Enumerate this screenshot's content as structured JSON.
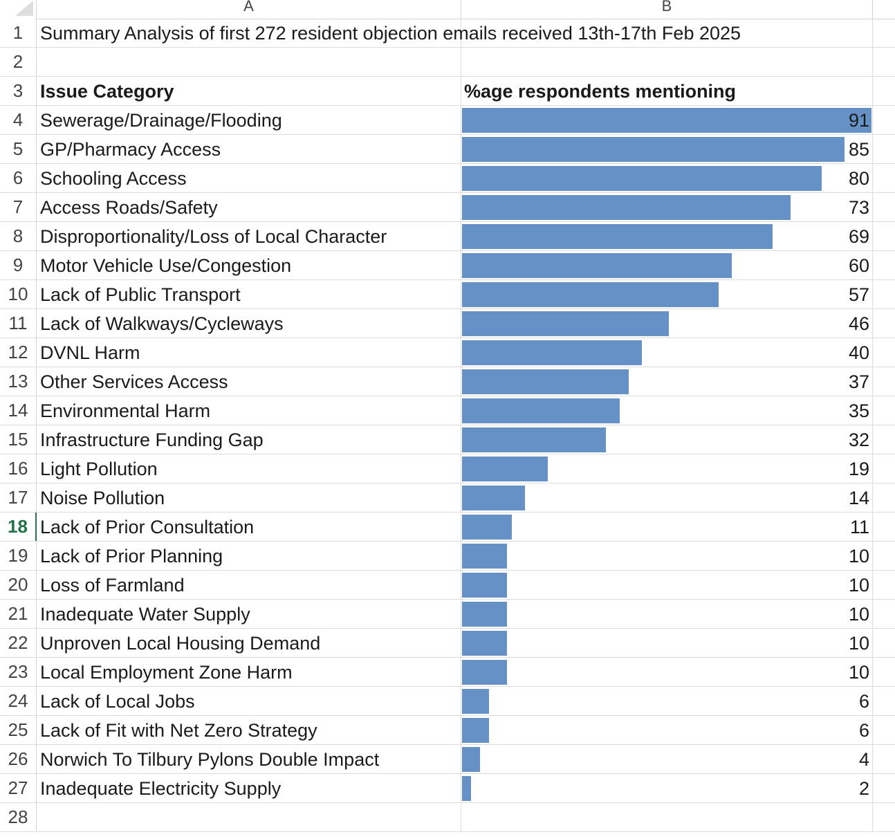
{
  "columns": {
    "a": "A",
    "b": "B"
  },
  "title": "Summary Analysis of first 272 resident objection emails received 13th-17th Feb 2025",
  "headers": {
    "category": "Issue Category",
    "percent": "%age respondents mentioning"
  },
  "active_row": 18,
  "bar_color": "#6591c7",
  "bar_max": 91,
  "chart_data": {
    "type": "table",
    "categories": [
      "Sewerage/Drainage/Flooding",
      "GP/Pharmacy Access",
      "Schooling Access",
      "Access Roads/Safety",
      "Disproportionality/Loss of Local Character",
      "Motor Vehicle Use/Congestion",
      "Lack of Public Transport",
      "Lack of Walkways/Cycleways",
      "DVNL Harm",
      "Other Services Access",
      "Environmental Harm",
      "Infrastructure Funding Gap",
      "Light Pollution",
      "Noise Pollution",
      "Lack of Prior Consultation",
      "Lack of Prior Planning",
      "Loss of Farmland",
      "Inadequate Water Supply",
      "Unproven Local Housing Demand",
      "Local Employment Zone Harm",
      "Lack of Local Jobs",
      "Lack of Fit with Net Zero Strategy",
      "Norwich To Tilbury Pylons Double Impact",
      "Inadequate Electricity Supply"
    ],
    "values": [
      91,
      85,
      80,
      73,
      69,
      60,
      57,
      46,
      40,
      37,
      35,
      32,
      19,
      14,
      11,
      10,
      10,
      10,
      10,
      10,
      6,
      6,
      4,
      2
    ]
  }
}
